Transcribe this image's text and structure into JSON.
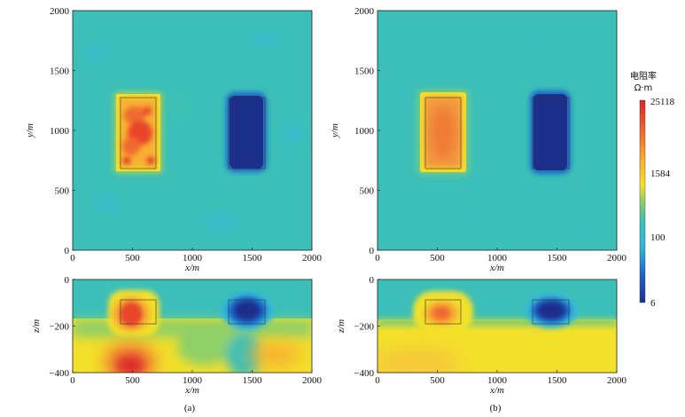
{
  "colorbar": {
    "title": "电阻率",
    "unit": "Ω·m",
    "ticks": [
      "25118",
      "1584",
      "100",
      "6"
    ],
    "colors": [
      "#d9262a",
      "#ef6a30",
      "#f7b032",
      "#f3e02a",
      "#8fcf67",
      "#3cbfb8",
      "#35b8d9",
      "#1f66c9",
      "#1c2f8a"
    ]
  },
  "chart_data": [
    {
      "type": "heatmap",
      "panel": "a-plan",
      "xlabel": "x/m",
      "ylabel": "y/m",
      "xlim": [
        0,
        2000
      ],
      "ylim": [
        0,
        2000
      ],
      "xticks": [
        "0",
        "500",
        "1000",
        "1500",
        "2000"
      ],
      "yticks": [
        "0",
        "500",
        "1000",
        "1500",
        "2000"
      ],
      "background": "#3cbfb8",
      "bodies": [
        {
          "kind": "high",
          "x": [
            400,
            700
          ],
          "y": [
            700,
            1300
          ],
          "color": "#ef6a30"
        },
        {
          "kind": "low",
          "x": [
            1300,
            1600
          ],
          "y": [
            700,
            1300
          ],
          "color": "#1c2f8a"
        }
      ]
    },
    {
      "type": "heatmap",
      "panel": "b-plan",
      "xlabel": "x/m",
      "ylabel": "y/m",
      "xlim": [
        0,
        2000
      ],
      "ylim": [
        0,
        2000
      ],
      "xticks": [
        "0",
        "500",
        "1000",
        "1500",
        "2000"
      ],
      "yticks": [
        "0",
        "500",
        "1000",
        "1500",
        "2000"
      ],
      "background": "#3cbfb8",
      "bodies": [
        {
          "kind": "high",
          "x": [
            400,
            700
          ],
          "y": [
            700,
            1300
          ],
          "color": "#f39a40"
        },
        {
          "kind": "low",
          "x": [
            1300,
            1600
          ],
          "y": [
            700,
            1300
          ],
          "color": "#1c2f8a"
        }
      ]
    },
    {
      "type": "heatmap",
      "panel": "a-section",
      "xlabel": "x/m",
      "ylabel": "z/m",
      "xlim": [
        0,
        2000
      ],
      "ylim": [
        -400,
        0
      ],
      "xticks": [
        "0",
        "500",
        "1000",
        "1500",
        "2000"
      ],
      "yticks": [
        "0",
        "−200",
        "−400"
      ],
      "bodies": [
        {
          "kind": "high",
          "x": [
            400,
            700
          ],
          "z": [
            -200,
            -100
          ],
          "color": "#ef6a30"
        },
        {
          "kind": "low",
          "x": [
            1300,
            1600
          ],
          "z": [
            -200,
            -100
          ],
          "color": "#1c2f8a"
        }
      ]
    },
    {
      "type": "heatmap",
      "panel": "b-section",
      "xlabel": "x/m",
      "ylabel": "z/m",
      "xlim": [
        0,
        2000
      ],
      "ylim": [
        -400,
        0
      ],
      "xticks": [
        "0",
        "500",
        "1000",
        "1500",
        "2000"
      ],
      "yticks": [
        "0",
        "−200",
        "−400"
      ],
      "bodies": [
        {
          "kind": "high",
          "x": [
            400,
            700
          ],
          "z": [
            -200,
            -100
          ],
          "color": "#ef6a30"
        },
        {
          "kind": "low",
          "x": [
            1300,
            1600
          ],
          "z": [
            -200,
            -100
          ],
          "color": "#1c2f8a"
        }
      ]
    }
  ],
  "captions": {
    "a": "(a)",
    "b": "(b)"
  }
}
